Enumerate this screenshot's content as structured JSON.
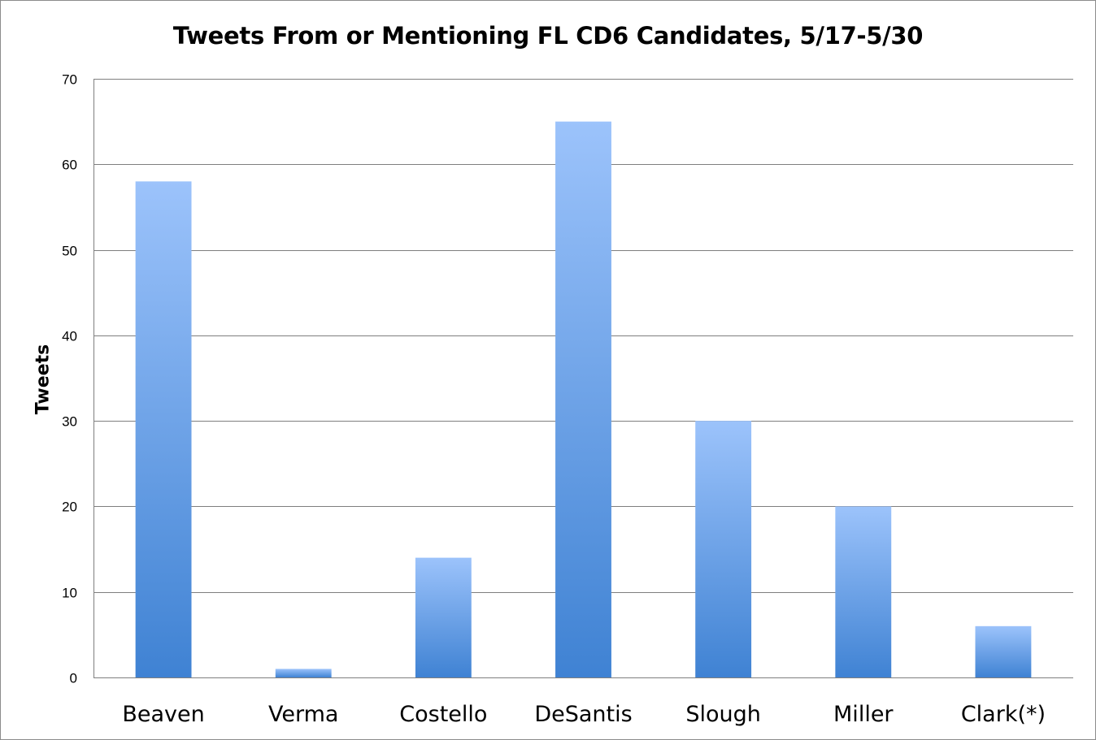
{
  "chart_data": {
    "type": "bar",
    "title": "Tweets From or Mentioning FL CD6 Candidates, 5/17-5/30",
    "xlabel": "",
    "ylabel": "Tweets",
    "categories": [
      "Beaven",
      "Verma",
      "Costello",
      "DeSantis",
      "Slough",
      "Miller",
      "Clark(*)"
    ],
    "values": [
      58,
      1,
      14,
      65,
      30,
      20,
      6
    ],
    "ylim": [
      0,
      70
    ],
    "yticks": [
      "0",
      "10",
      "20",
      "30",
      "40",
      "50",
      "60",
      "70"
    ],
    "grid": true,
    "legend": "none",
    "colors": {
      "bar_top": "#9cc3fb",
      "bar_bottom": "#3f82d3",
      "grid": "#7f7f7f"
    }
  }
}
